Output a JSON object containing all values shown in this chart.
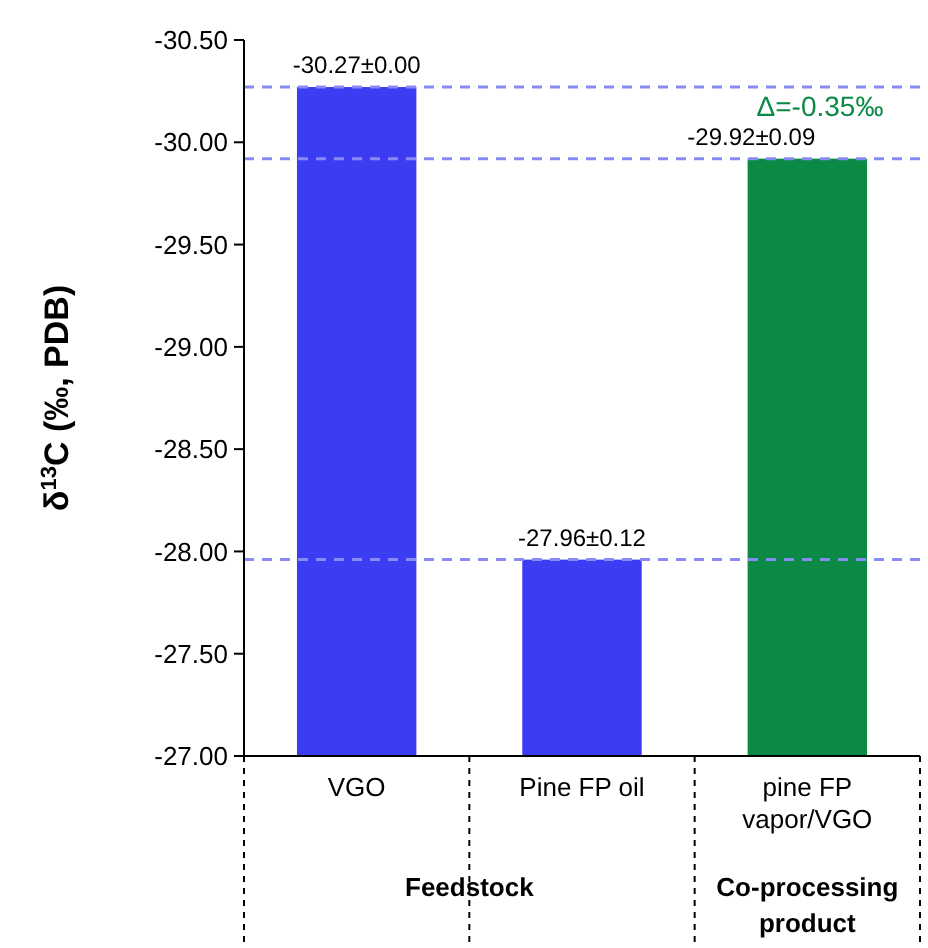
{
  "chart_data": {
    "type": "bar",
    "ylabel": "δ$^{13}$C (‰,   PDB)",
    "categories": [
      "VGO",
      "Pine FP oil",
      "pine FP vapor/VGO"
    ],
    "values": [
      -30.27,
      -27.96,
      -29.92
    ],
    "colors": [
      "#3c3cf2",
      "#3c3cf2",
      "#0a8a45"
    ],
    "value_labels": [
      "-30.27±0.00",
      "-27.96±0.12",
      "-29.92±0.09"
    ],
    "ylim": [
      -27,
      -30.5
    ],
    "yticks": [
      {
        "value": -30.5,
        "label": "-30.50"
      },
      {
        "value": -30,
        "label": "-30.00"
      },
      {
        "value": -29.5,
        "label": "-29.50"
      },
      {
        "value": -29,
        "label": "-29.00"
      },
      {
        "value": -28.5,
        "label": "-28.50"
      },
      {
        "value": -28,
        "label": "-28.00"
      },
      {
        "value": -27.5,
        "label": "-27.50"
      },
      {
        "value": -27,
        "label": "-27.00"
      }
    ],
    "ref_lines": [
      {
        "axis": "y",
        "value": -30.27,
        "color": "#8a8af5",
        "line_style": "dashed"
      },
      {
        "axis": "y",
        "value": -29.92,
        "color": "#8a8af5",
        "line_style": "dashed"
      },
      {
        "axis": "y",
        "value": -27.96,
        "color": "#8a8af5",
        "line_style": "dashed"
      }
    ],
    "annotations": [
      "Δ=-0.35‰",
      "Feedstock",
      "Co-processing product"
    ],
    "grid": false
  }
}
